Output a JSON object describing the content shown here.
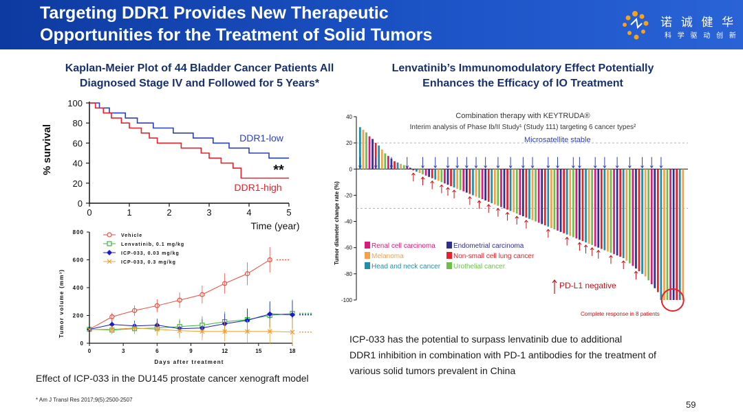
{
  "header": {
    "title_line1": "Targeting DDR1 Provides New Therapeutic",
    "title_line2": "Opportunities for the Treatment of Solid Tumors",
    "logo_name": "诺 诚 健 华",
    "logo_slogan": "科 学 驱 动 创 新"
  },
  "left_panel": {
    "title_line1": "Kaplan-Meier Plot of 44 Bladder Cancer Patients All",
    "title_line2": "Diagnosed Stage IV and Followed for 5 Years*",
    "caption": "Effect of ICP-033 in the DU145 prostate cancer xenograft model"
  },
  "right_panel": {
    "title_line1": "Lenvatinib’s Immunomodulatory Effect Potentially",
    "title_line2": "Enhances the Efficacy of IO Treatment",
    "text_line1": "ICP-033 has the potential to surpass lenvatinib due to additional",
    "text_line2": "DDR1 inhibition in combination with PD-1 antibodies for the treatment of",
    "text_line3": "various solid tumors prevalent in China"
  },
  "footnote": "* Am J Transl Res 2017;9(5):2500-2507",
  "page_number": "59",
  "chart_data": [
    {
      "type": "line",
      "title": "",
      "xlabel": "Time (year)",
      "ylabel": "% survival",
      "xlim": [
        0,
        5
      ],
      "ylim": [
        0,
        100
      ],
      "xticks": [
        "0",
        "1",
        "2",
        "3",
        "4",
        "5"
      ],
      "yticks": [
        "0",
        "20",
        "40",
        "60",
        "80",
        "100"
      ],
      "annotation": "**",
      "series": [
        {
          "name": "DDR1-low",
          "color": "#2a3fc4",
          "x": [
            0,
            0.25,
            0.25,
            0.5,
            0.5,
            0.9,
            0.9,
            1.2,
            1.2,
            1.6,
            1.6,
            2.1,
            2.1,
            2.6,
            2.6,
            3.1,
            3.1,
            3.5,
            3.5,
            4.0,
            4.0,
            4.5,
            4.5,
            5.0
          ],
          "y": [
            100,
            100,
            95,
            95,
            90,
            90,
            85,
            85,
            80,
            80,
            75,
            75,
            70,
            70,
            65,
            65,
            60,
            60,
            55,
            55,
            50,
            50,
            45,
            45
          ]
        },
        {
          "name": "DDR1-high",
          "color": "#e8202a",
          "x": [
            0,
            0.15,
            0.15,
            0.35,
            0.35,
            0.55,
            0.55,
            0.8,
            0.8,
            1.0,
            1.0,
            1.3,
            1.3,
            1.5,
            1.5,
            1.7,
            1.7,
            2.3,
            2.3,
            2.8,
            2.8,
            3.0,
            3.0,
            3.3,
            3.3,
            3.6,
            3.6,
            3.8,
            3.8,
            5.0
          ],
          "y": [
            100,
            100,
            95,
            95,
            90,
            90,
            85,
            85,
            80,
            80,
            75,
            75,
            70,
            70,
            65,
            65,
            60,
            60,
            55,
            55,
            50,
            50,
            45,
            45,
            40,
            40,
            35,
            35,
            25,
            25
          ]
        }
      ]
    },
    {
      "type": "line",
      "title": "",
      "xlabel": "Days after treatment",
      "ylabel": "Tumor volume (mm³)",
      "xlim": [
        0,
        18
      ],
      "ylim": [
        0,
        800
      ],
      "xticks": [
        "0",
        "3",
        "6",
        "9",
        "12",
        "15",
        "18"
      ],
      "yticks": [
        "0",
        "200",
        "400",
        "600",
        "800"
      ],
      "x": [
        0,
        2,
        4,
        6,
        8,
        10,
        12,
        14,
        16,
        18
      ],
      "series": [
        {
          "name": "Vehicle",
          "color": "#f04a3a",
          "marker": "circle",
          "values": [
            100,
            190,
            235,
            270,
            310,
            350,
            430,
            500,
            600,
            null
          ]
        },
        {
          "name": "Lenvatinib, 0.1 mg/kg",
          "color": "#3ab83a",
          "marker": "square",
          "values": [
            100,
            95,
            105,
            110,
            120,
            130,
            155,
            170,
            200,
            215
          ]
        },
        {
          "name": "ICP-033, 0.03 mg/kg",
          "color": "#1a1acc",
          "marker": "diamond",
          "values": [
            100,
            135,
            125,
            130,
            105,
            110,
            140,
            165,
            210,
            205
          ]
        },
        {
          "name": "ICP-033, 0.3 mg/kg",
          "color": "#f0a030",
          "marker": "x",
          "values": [
            100,
            100,
            110,
            100,
            90,
            85,
            85,
            85,
            85,
            80
          ]
        }
      ]
    },
    {
      "type": "bar",
      "title": "Combination therapy with KEYTRUDA®",
      "subtitle": "Interim analysis of Phase Ib/II Study¹ (Study 111) targeting 6 cancer types²",
      "xlabel": "",
      "ylabel": "Tumor diameter change rate (%)",
      "ylim": [
        -100,
        40
      ],
      "yticks": [
        "40",
        "20",
        "0",
        "-20",
        "-40",
        "-60",
        "-80",
        "-100"
      ],
      "annotations": [
        "Microsatellite stable",
        "PD-L1 negative",
        "Complete response in 8 patients"
      ],
      "legend": [
        {
          "name": "Renal cell carcinoma",
          "color": "#d81b7a"
        },
        {
          "name": "Endometrial carcinoma",
          "color": "#2e2f8e"
        },
        {
          "name": "Melanoma",
          "color": "#f6a04a"
        },
        {
          "name": "Non-small cell lung cancer",
          "color": "#e8202a"
        },
        {
          "name": "Head and neck cancer",
          "color": "#1f8fa6"
        },
        {
          "name": "Urothelial cancer",
          "color": "#6cc04a"
        }
      ],
      "values": [
        32,
        30,
        28,
        25,
        23,
        20,
        18,
        15,
        12,
        10,
        8,
        6,
        5,
        4,
        3,
        2,
        1,
        -1,
        -2,
        -3,
        -4,
        -5,
        -6,
        -7,
        -8,
        -9,
        -10,
        -11,
        -12,
        -13,
        -14,
        -15,
        -16,
        -17,
        -18,
        -19,
        -20,
        -21,
        -22,
        -23,
        -24,
        -25,
        -26,
        -27,
        -28,
        -29,
        -30,
        -31,
        -32,
        -33,
        -34,
        -35,
        -36,
        -37,
        -38,
        -39,
        -40,
        -41,
        -42,
        -43,
        -44,
        -45,
        -46,
        -47,
        -48,
        -49,
        -50,
        -51,
        -52,
        -53,
        -54,
        -55,
        -56,
        -57,
        -58,
        -59,
        -60,
        -61,
        -62,
        -63,
        -64,
        -65,
        -66,
        -67,
        -68,
        -70,
        -72,
        -74,
        -76,
        -78,
        -80,
        -82,
        -85,
        -88,
        -91,
        -94,
        -100,
        -100,
        -100,
        -100,
        -100,
        -100,
        -100,
        -100
      ]
    }
  ]
}
